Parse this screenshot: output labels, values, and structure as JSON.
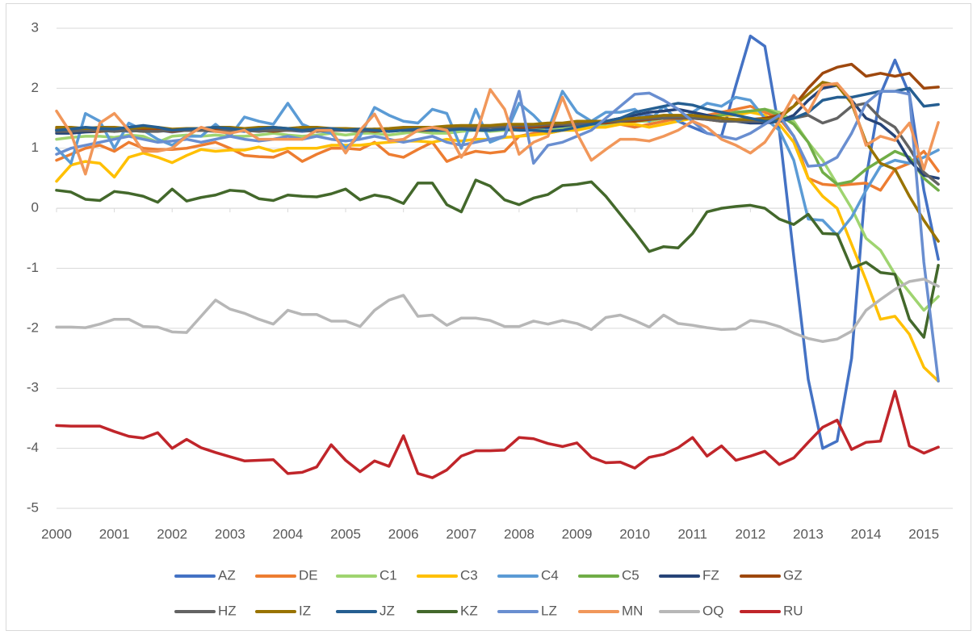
{
  "chart_data": {
    "type": "line",
    "x": [
      2000,
      2000.25,
      2000.5,
      2000.75,
      2001,
      2001.25,
      2001.5,
      2001.75,
      2002,
      2002.25,
      2002.5,
      2002.75,
      2003,
      2003.25,
      2003.5,
      2003.75,
      2004,
      2004.25,
      2004.5,
      2004.75,
      2005,
      2005.25,
      2005.5,
      2005.75,
      2006,
      2006.25,
      2006.5,
      2006.75,
      2007,
      2007.25,
      2007.5,
      2007.75,
      2008,
      2008.25,
      2008.5,
      2008.75,
      2009,
      2009.25,
      2009.5,
      2009.75,
      2010,
      2010.25,
      2010.5,
      2010.75,
      2011,
      2011.25,
      2011.5,
      2011.75,
      2012,
      2012.25,
      2012.5,
      2012.75,
      2013,
      2013.25,
      2013.5,
      2013.75,
      2014,
      2014.25,
      2014.5,
      2014.75,
      2015,
      2015.25
    ],
    "xlim": [
      2000,
      2015.5
    ],
    "xticks": [
      2000,
      2001,
      2002,
      2003,
      2004,
      2005,
      2006,
      2007,
      2008,
      2009,
      2010,
      2011,
      2012,
      2013,
      2014,
      2015
    ],
    "ylim": [
      -5,
      3
    ],
    "yticks": [
      -5,
      -4,
      -3,
      -2,
      -1,
      0,
      1,
      2,
      3
    ],
    "grid": true,
    "legend": "bottom",
    "series": [
      {
        "name": "AZ",
        "color": "#4472c4",
        "values": [
          1.3,
          1.28,
          1.3,
          1.32,
          1.3,
          1.28,
          1.3,
          1.3,
          1.27,
          1.3,
          1.3,
          1.32,
          1.3,
          1.28,
          1.3,
          1.32,
          1.3,
          1.28,
          1.3,
          1.3,
          1.32,
          1.3,
          1.28,
          1.3,
          1.3,
          1.32,
          1.3,
          1.28,
          1.3,
          1.32,
          1.3,
          1.3,
          1.32,
          1.3,
          1.3,
          1.32,
          1.35,
          1.4,
          1.45,
          1.5,
          1.5,
          1.55,
          1.5,
          1.45,
          1.35,
          1.25,
          1.2,
          2.05,
          2.87,
          2.7,
          1.3,
          -0.8,
          -2.85,
          -4.0,
          -3.88,
          -2.5,
          0.5,
          1.9,
          2.47,
          1.9,
          0.3,
          -0.85
        ]
      },
      {
        "name": "DE",
        "color": "#ed7d31",
        "values": [
          0.8,
          0.9,
          1.0,
          1.05,
          0.95,
          1.1,
          1.0,
          0.98,
          0.98,
          1.0,
          1.05,
          1.1,
          1.0,
          0.88,
          0.86,
          0.85,
          0.95,
          0.78,
          0.9,
          1.0,
          1.0,
          0.98,
          1.1,
          0.9,
          0.85,
          0.98,
          1.1,
          0.78,
          0.88,
          0.95,
          0.92,
          0.95,
          1.2,
          1.25,
          1.25,
          1.3,
          1.35,
          1.35,
          1.4,
          1.4,
          1.35,
          1.4,
          1.45,
          1.5,
          1.5,
          1.55,
          1.6,
          1.65,
          1.7,
          1.6,
          1.5,
          1.2,
          0.5,
          0.4,
          0.38,
          0.4,
          0.42,
          0.3,
          0.65,
          0.75,
          0.95,
          0.62
        ]
      },
      {
        "name": "C1",
        "color": "#9fd470",
        "values": [
          1.15,
          1.18,
          1.2,
          1.2,
          1.18,
          1.22,
          1.2,
          1.1,
          1.2,
          1.22,
          1.2,
          1.22,
          1.2,
          1.2,
          1.22,
          1.25,
          1.22,
          1.2,
          1.22,
          1.25,
          1.22,
          1.25,
          1.25,
          1.22,
          1.25,
          1.28,
          1.25,
          1.25,
          1.28,
          1.3,
          1.28,
          1.3,
          1.3,
          1.32,
          1.3,
          1.35,
          1.35,
          1.38,
          1.4,
          1.42,
          1.45,
          1.45,
          1.5,
          1.5,
          1.5,
          1.5,
          1.55,
          1.6,
          1.6,
          1.65,
          1.6,
          1.45,
          1.1,
          0.8,
          0.4,
          0.0,
          -0.5,
          -0.7,
          -1.1,
          -1.4,
          -1.7,
          -1.47
        ]
      },
      {
        "name": "C3",
        "color": "#ffc000",
        "values": [
          0.45,
          0.72,
          0.78,
          0.75,
          0.52,
          0.85,
          0.92,
          0.85,
          0.76,
          0.88,
          0.98,
          0.95,
          0.97,
          0.97,
          1.02,
          0.95,
          1.0,
          1.0,
          1.0,
          1.05,
          1.05,
          1.05,
          1.08,
          1.1,
          1.12,
          1.12,
          1.1,
          1.15,
          1.12,
          1.15,
          1.15,
          1.18,
          1.2,
          1.22,
          1.25,
          1.3,
          1.3,
          1.35,
          1.35,
          1.4,
          1.4,
          1.35,
          1.4,
          1.45,
          1.5,
          1.5,
          1.55,
          1.55,
          1.6,
          1.55,
          1.4,
          1.1,
          0.5,
          0.2,
          0.0,
          -0.6,
          -1.2,
          -1.85,
          -1.8,
          -2.1,
          -2.65,
          -2.88
        ]
      },
      {
        "name": "C4",
        "color": "#5b9bd5",
        "values": [
          1.0,
          0.75,
          1.58,
          1.45,
          1.0,
          1.42,
          1.3,
          1.15,
          1.05,
          1.2,
          1.2,
          1.4,
          1.2,
          1.52,
          1.45,
          1.4,
          1.75,
          1.4,
          1.3,
          1.25,
          1.0,
          1.2,
          1.68,
          1.55,
          1.45,
          1.42,
          1.65,
          1.58,
          1.0,
          1.65,
          1.1,
          1.2,
          1.75,
          1.55,
          1.3,
          1.95,
          1.6,
          1.45,
          1.6,
          1.6,
          1.65,
          1.45,
          1.7,
          1.45,
          1.6,
          1.75,
          1.7,
          1.85,
          1.8,
          1.5,
          1.3,
          0.8,
          -0.18,
          -0.2,
          -0.45,
          -0.15,
          0.3,
          0.7,
          0.8,
          0.75,
          0.85,
          0.97
        ]
      },
      {
        "name": "C5",
        "color": "#70ad47",
        "values": [
          1.3,
          1.28,
          1.3,
          1.3,
          1.28,
          1.3,
          1.28,
          1.3,
          1.3,
          1.3,
          1.3,
          1.3,
          1.28,
          1.3,
          1.3,
          1.3,
          1.32,
          1.3,
          1.3,
          1.32,
          1.3,
          1.3,
          1.32,
          1.3,
          1.3,
          1.32,
          1.3,
          1.32,
          1.32,
          1.35,
          1.35,
          1.35,
          1.35,
          1.38,
          1.38,
          1.4,
          1.4,
          1.4,
          1.42,
          1.45,
          1.45,
          1.48,
          1.5,
          1.5,
          1.5,
          1.52,
          1.55,
          1.6,
          1.62,
          1.65,
          1.55,
          1.4,
          1.1,
          0.6,
          0.4,
          0.45,
          0.65,
          0.8,
          0.95,
          0.85,
          0.5,
          0.3
        ]
      },
      {
        "name": "FZ",
        "color": "#264478",
        "values": [
          1.25,
          1.25,
          1.27,
          1.28,
          1.3,
          1.32,
          1.35,
          1.33,
          1.3,
          1.3,
          1.3,
          1.32,
          1.33,
          1.33,
          1.3,
          1.3,
          1.32,
          1.35,
          1.33,
          1.32,
          1.3,
          1.3,
          1.32,
          1.3,
          1.3,
          1.3,
          1.3,
          1.35,
          1.33,
          1.33,
          1.35,
          1.35,
          1.33,
          1.35,
          1.35,
          1.37,
          1.4,
          1.42,
          1.45,
          1.5,
          1.55,
          1.6,
          1.62,
          1.65,
          1.6,
          1.55,
          1.5,
          1.45,
          1.42,
          1.42,
          1.45,
          1.55,
          1.8,
          2.0,
          2.05,
          1.8,
          1.5,
          1.4,
          1.2,
          0.8,
          0.55,
          0.5
        ]
      },
      {
        "name": "GZ",
        "color": "#9e480e",
        "values": [
          1.32,
          1.3,
          1.3,
          1.28,
          1.3,
          1.3,
          1.32,
          1.3,
          1.28,
          1.3,
          1.3,
          1.3,
          1.32,
          1.3,
          1.3,
          1.28,
          1.3,
          1.3,
          1.32,
          1.3,
          1.3,
          1.3,
          1.28,
          1.3,
          1.32,
          1.3,
          1.3,
          1.32,
          1.35,
          1.35,
          1.35,
          1.38,
          1.35,
          1.35,
          1.38,
          1.4,
          1.4,
          1.42,
          1.42,
          1.45,
          1.45,
          1.48,
          1.5,
          1.5,
          1.5,
          1.48,
          1.45,
          1.45,
          1.48,
          1.5,
          1.55,
          1.7,
          2.0,
          2.25,
          2.35,
          2.4,
          2.2,
          2.25,
          2.2,
          2.25,
          2.0,
          2.02
        ]
      },
      {
        "name": "HZ",
        "color": "#636363",
        "values": [
          1.28,
          1.28,
          1.3,
          1.3,
          1.28,
          1.3,
          1.28,
          1.28,
          1.3,
          1.3,
          1.3,
          1.28,
          1.3,
          1.3,
          1.28,
          1.3,
          1.3,
          1.3,
          1.28,
          1.3,
          1.3,
          1.28,
          1.3,
          1.28,
          1.3,
          1.3,
          1.32,
          1.33,
          1.35,
          1.35,
          1.35,
          1.35,
          1.38,
          1.38,
          1.4,
          1.4,
          1.4,
          1.42,
          1.45,
          1.45,
          1.48,
          1.5,
          1.5,
          1.52,
          1.5,
          1.48,
          1.45,
          1.45,
          1.45,
          1.45,
          1.45,
          1.5,
          1.55,
          1.42,
          1.5,
          1.7,
          1.75,
          1.5,
          1.35,
          1.0,
          0.6,
          0.4
        ]
      },
      {
        "name": "IZ",
        "color": "#997300",
        "values": [
          1.35,
          1.35,
          1.33,
          1.35,
          1.35,
          1.33,
          1.35,
          1.35,
          1.32,
          1.33,
          1.33,
          1.35,
          1.35,
          1.33,
          1.35,
          1.35,
          1.33,
          1.35,
          1.35,
          1.33,
          1.33,
          1.32,
          1.32,
          1.33,
          1.35,
          1.35,
          1.35,
          1.37,
          1.38,
          1.38,
          1.38,
          1.4,
          1.4,
          1.4,
          1.42,
          1.42,
          1.45,
          1.45,
          1.45,
          1.48,
          1.5,
          1.52,
          1.55,
          1.55,
          1.55,
          1.52,
          1.5,
          1.48,
          1.48,
          1.48,
          1.5,
          1.7,
          1.9,
          2.1,
          2.05,
          1.75,
          1.1,
          0.75,
          0.65,
          0.2,
          -0.2,
          -0.55
        ]
      },
      {
        "name": "JZ",
        "color": "#255e91",
        "values": [
          1.3,
          1.32,
          1.35,
          1.33,
          1.32,
          1.35,
          1.38,
          1.35,
          1.3,
          1.32,
          1.33,
          1.35,
          1.33,
          1.3,
          1.32,
          1.35,
          1.33,
          1.3,
          1.32,
          1.33,
          1.3,
          1.32,
          1.3,
          1.28,
          1.3,
          1.32,
          1.3,
          1.3,
          1.32,
          1.3,
          1.3,
          1.32,
          1.3,
          1.3,
          1.28,
          1.3,
          1.35,
          1.4,
          1.45,
          1.5,
          1.6,
          1.65,
          1.7,
          1.75,
          1.72,
          1.65,
          1.6,
          1.55,
          1.5,
          1.45,
          1.45,
          1.5,
          1.6,
          1.8,
          1.85,
          1.85,
          1.9,
          1.95,
          1.95,
          2.0,
          1.7,
          1.73
        ]
      },
      {
        "name": "KZ",
        "color": "#43682b",
        "values": [
          0.3,
          0.27,
          0.15,
          0.13,
          0.28,
          0.25,
          0.2,
          0.1,
          0.32,
          0.12,
          0.18,
          0.22,
          0.3,
          0.28,
          0.16,
          0.13,
          0.22,
          0.2,
          0.19,
          0.24,
          0.32,
          0.14,
          0.22,
          0.18,
          0.08,
          0.42,
          0.42,
          0.06,
          -0.06,
          0.47,
          0.37,
          0.14,
          0.06,
          0.17,
          0.23,
          0.38,
          0.4,
          0.44,
          0.2,
          -0.1,
          -0.4,
          -0.72,
          -0.64,
          -0.66,
          -0.42,
          -0.06,
          0.0,
          0.03,
          0.05,
          0.0,
          -0.18,
          -0.27,
          -0.1,
          -0.42,
          -0.43,
          -1.0,
          -0.9,
          -1.07,
          -1.1,
          -1.85,
          -2.15,
          -0.95
        ]
      },
      {
        "name": "LZ",
        "color": "#698ed0",
        "values": [
          0.9,
          1.0,
          1.05,
          1.1,
          1.15,
          1.2,
          1.15,
          1.1,
          1.12,
          1.15,
          1.1,
          1.15,
          1.2,
          1.15,
          1.12,
          1.15,
          1.2,
          1.15,
          1.2,
          1.15,
          1.12,
          1.15,
          1.2,
          1.15,
          1.1,
          1.15,
          1.2,
          1.1,
          1.05,
          1.1,
          1.15,
          1.2,
          1.95,
          0.75,
          1.05,
          1.1,
          1.2,
          1.3,
          1.5,
          1.7,
          1.9,
          1.92,
          1.8,
          1.65,
          1.45,
          1.25,
          1.2,
          1.15,
          1.25,
          1.4,
          1.55,
          1.2,
          0.7,
          0.72,
          0.85,
          1.25,
          1.75,
          1.95,
          1.95,
          1.9,
          -0.9,
          -2.88
        ]
      },
      {
        "name": "MN",
        "color": "#f1975a",
        "values": [
          1.62,
          1.25,
          0.57,
          1.42,
          1.58,
          1.3,
          0.95,
          0.95,
          1.0,
          1.2,
          1.35,
          1.28,
          1.25,
          1.3,
          1.15,
          1.15,
          1.15,
          1.15,
          1.3,
          1.3,
          0.92,
          1.3,
          1.57,
          1.12,
          1.15,
          1.3,
          1.35,
          1.3,
          0.85,
          1.2,
          1.98,
          1.65,
          0.9,
          1.1,
          1.2,
          1.85,
          1.25,
          0.8,
          0.98,
          1.15,
          1.15,
          1.12,
          1.2,
          1.3,
          1.45,
          1.35,
          1.15,
          1.05,
          0.92,
          1.1,
          1.45,
          1.88,
          1.6,
          2.05,
          2.08,
          1.8,
          1.05,
          1.2,
          1.13,
          1.42,
          0.65,
          1.43
        ]
      },
      {
        "name": "OQ",
        "color": "#b7b7b7",
        "values": [
          -1.98,
          -1.98,
          -1.99,
          -1.93,
          -1.85,
          -1.85,
          -1.97,
          -1.98,
          -2.06,
          -2.07,
          -1.8,
          -1.53,
          -1.68,
          -1.75,
          -1.85,
          -1.93,
          -1.7,
          -1.77,
          -1.77,
          -1.88,
          -1.88,
          -1.97,
          -1.7,
          -1.53,
          -1.45,
          -1.8,
          -1.78,
          -1.95,
          -1.83,
          -1.83,
          -1.87,
          -1.97,
          -1.97,
          -1.88,
          -1.93,
          -1.87,
          -1.92,
          -2.02,
          -1.82,
          -1.78,
          -1.87,
          -1.98,
          -1.78,
          -1.92,
          -1.95,
          -1.99,
          -2.02,
          -2.01,
          -1.87,
          -1.9,
          -1.97,
          -2.08,
          -2.17,
          -2.22,
          -2.18,
          -2.05,
          -1.7,
          -1.52,
          -1.35,
          -1.22,
          -1.18,
          -1.3
        ]
      },
      {
        "name": "RU",
        "color": "#c0252a",
        "values": [
          -3.62,
          -3.63,
          -3.63,
          -3.63,
          -3.72,
          -3.8,
          -3.83,
          -3.74,
          -4.0,
          -3.85,
          -3.99,
          -4.07,
          -4.14,
          -4.21,
          -4.2,
          -4.19,
          -4.42,
          -4.4,
          -4.31,
          -3.94,
          -4.2,
          -4.39,
          -4.21,
          -4.3,
          -3.79,
          -4.42,
          -4.49,
          -4.36,
          -4.13,
          -4.04,
          -4.04,
          -4.03,
          -3.82,
          -3.84,
          -3.92,
          -3.97,
          -3.91,
          -4.15,
          -4.24,
          -4.23,
          -4.33,
          -4.15,
          -4.1,
          -3.99,
          -3.82,
          -4.13,
          -3.96,
          -4.2,
          -4.13,
          -4.05,
          -4.27,
          -4.16,
          -3.9,
          -3.65,
          -3.53,
          -4.02,
          -3.9,
          -3.88,
          -3.05,
          -3.96,
          -4.08,
          -3.98
        ]
      }
    ]
  }
}
